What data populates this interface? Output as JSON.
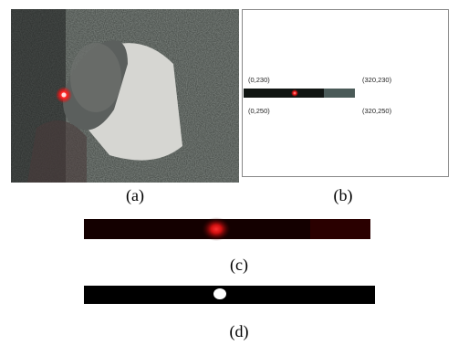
{
  "figure": {
    "panel_labels": [
      "(a)",
      "(b)",
      "(c)",
      "(d)"
    ],
    "coordinates": {
      "top_left": "(0,230)",
      "top_right": "(320,230)",
      "bottom_left": "(0,250)",
      "bottom_right": "(320,250)"
    }
  }
}
